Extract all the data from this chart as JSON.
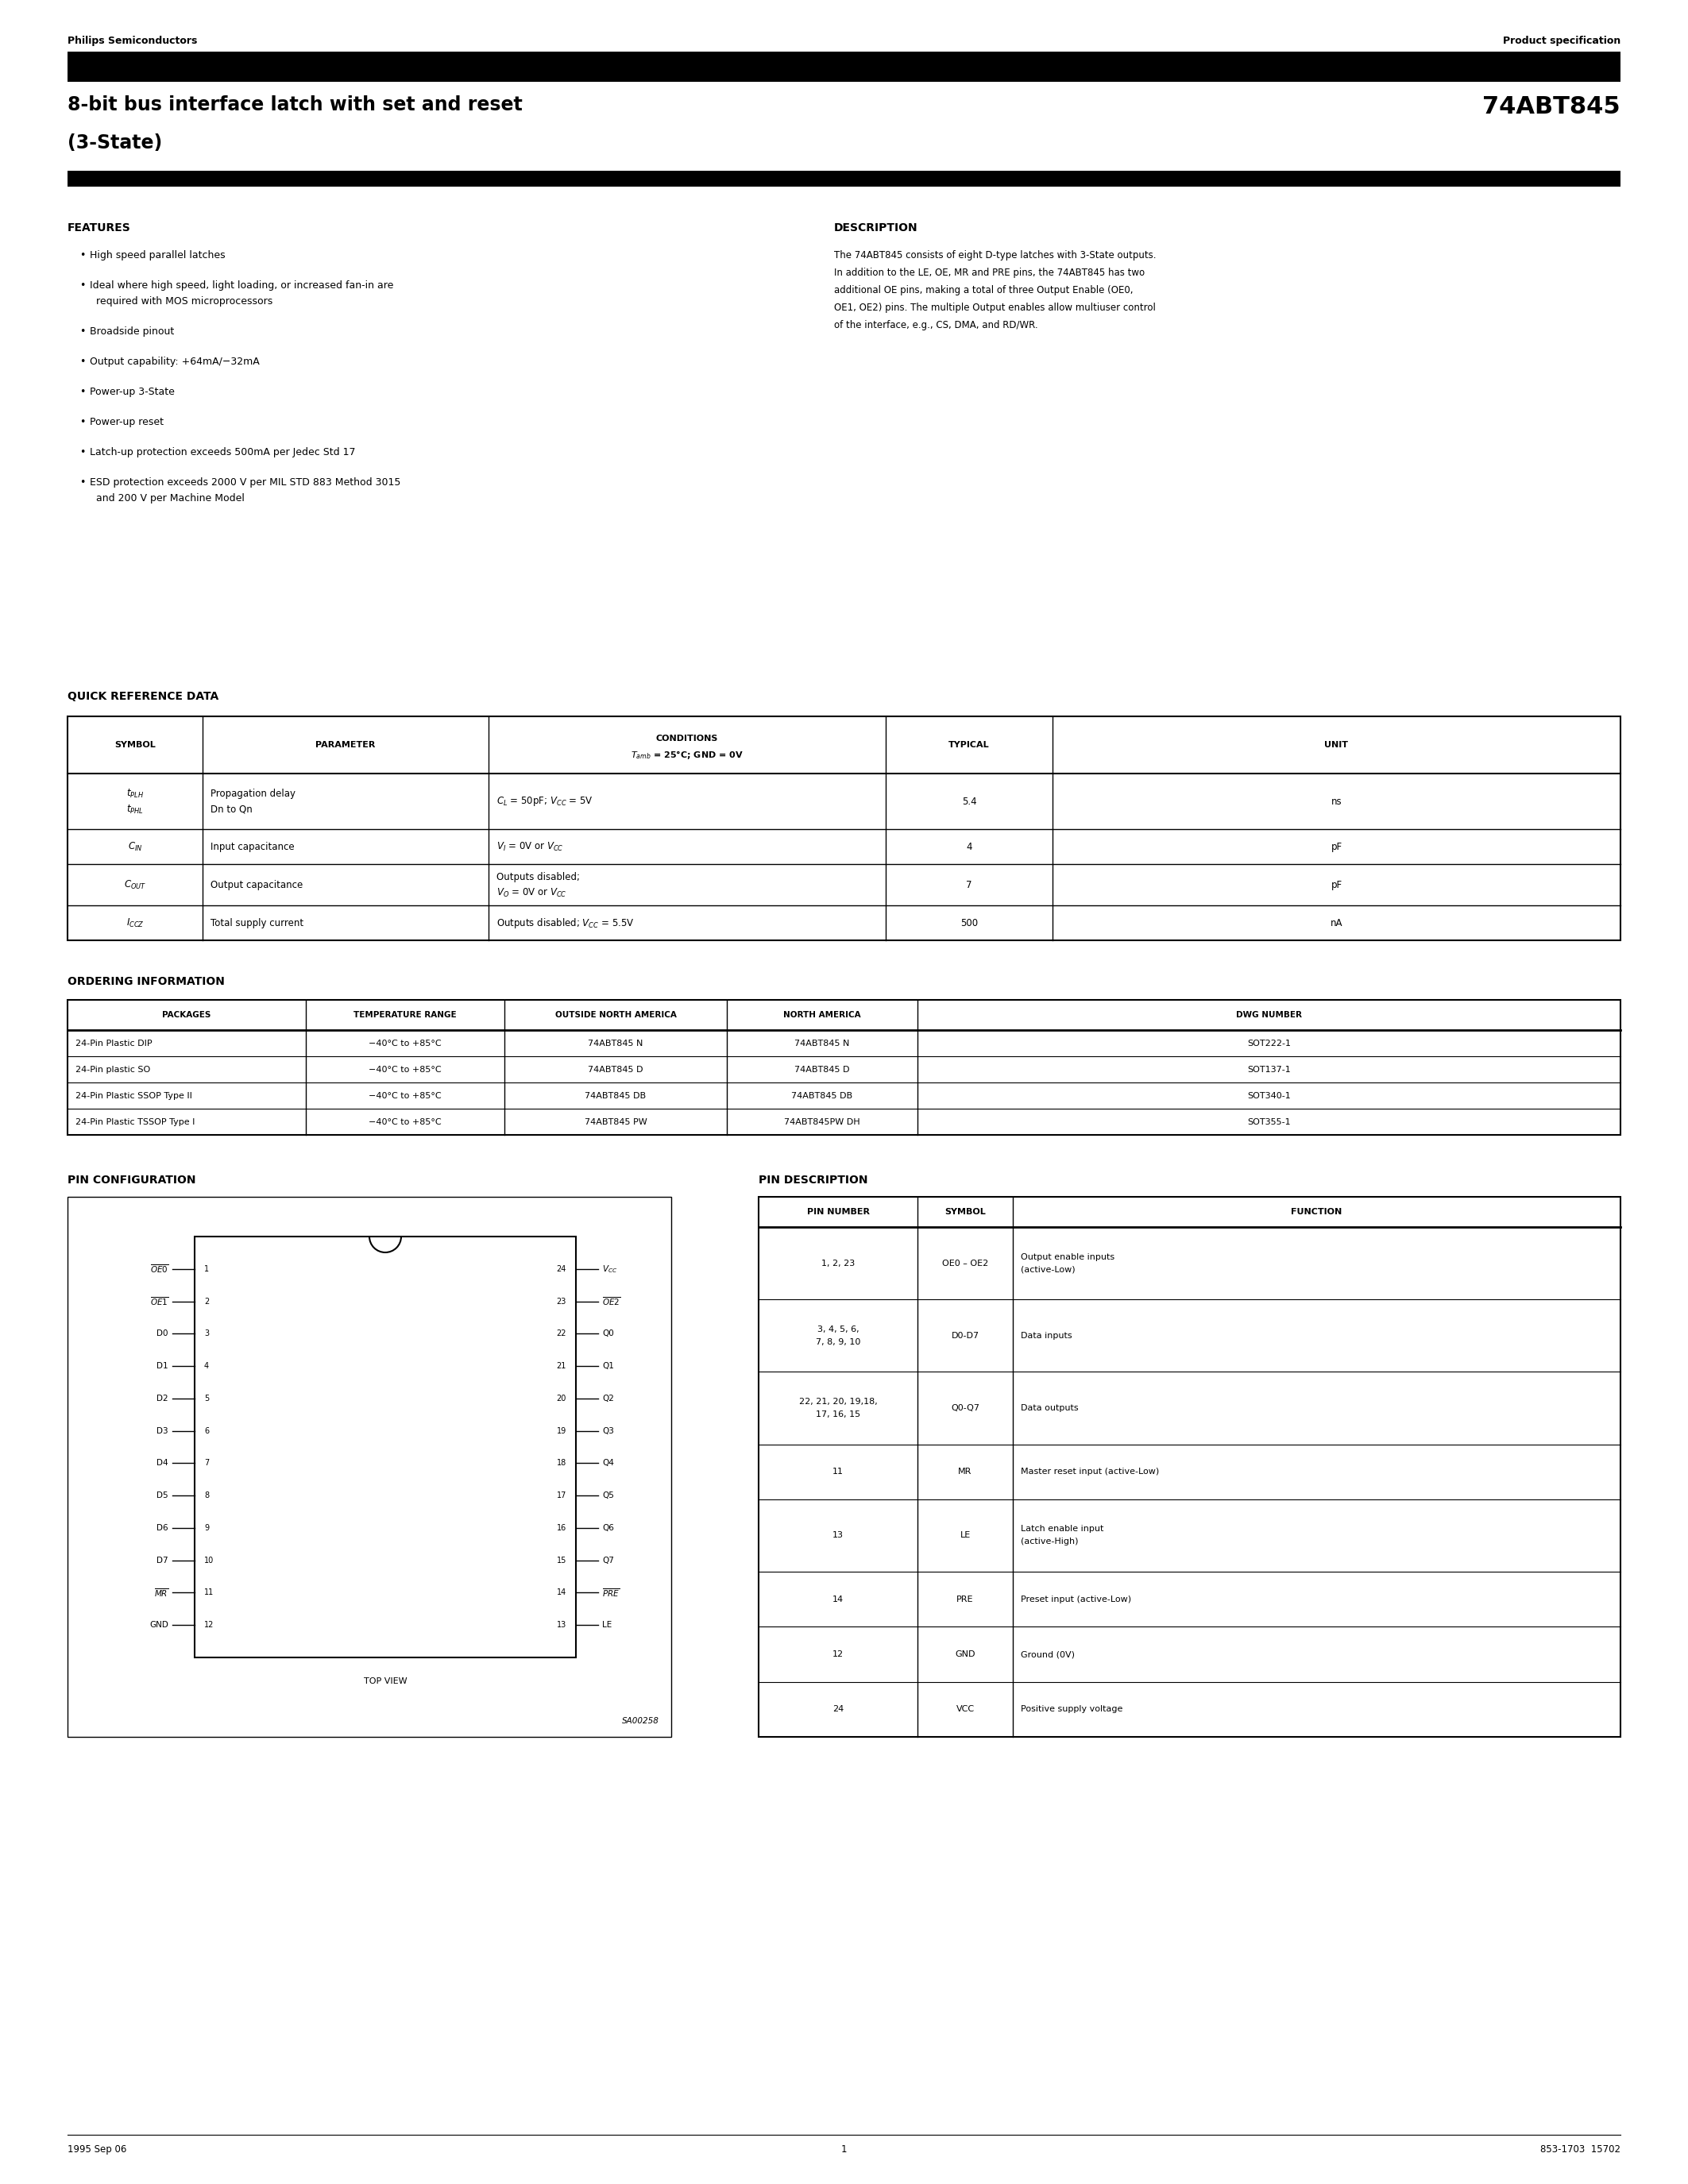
{
  "page_width": 21.25,
  "page_height": 27.5,
  "bg_color": "#ffffff",
  "header_left": "Philips Semiconductors",
  "header_right": "Product specification",
  "title_line1": "8-bit bus interface latch with set and reset",
  "title_line2": "(3-State)",
  "part_number": "74ABT845",
  "features_title": "FEATURES",
  "features": [
    "High speed parallel latches",
    "Ideal where high speed, light loading, or increased fan-in are\n  required with MOS microprocessors",
    "Broadside pinout",
    "Output capability: +64mA/−32mA",
    "Power-up 3-State",
    "Power-up reset",
    "Latch-up protection exceeds 500mA per Jedec Std 17",
    "ESD protection exceeds 2000 V per MIL STD 883 Method 3015\n  and 200 V per Machine Model"
  ],
  "description_title": "DESCRIPTION",
  "description_lines": [
    "The 74ABT845 consists of eight D-type latches with 3-State outputs.",
    "In addition to the LE, OE, MR and PRE pins, the 74ABT845 has two",
    "additional OE pins, making a total of three Output Enable (OE0,",
    "OE1, OE2) pins. The multiple Output enables allow multiuser control",
    "of the interface, e.g., CS, DMA, and RD/WR."
  ],
  "qrd_title": "QUICK REFERENCE DATA",
  "ordering_title": "ORDERING INFORMATION",
  "ordering_headers": [
    "PACKAGES",
    "TEMPERATURE RANGE",
    "OUTSIDE NORTH AMERICA",
    "NORTH AMERICA",
    "DWG NUMBER"
  ],
  "ordering_rows": [
    [
      "24-Pin Plastic DIP",
      "−40°C to +85°C",
      "74ABT845 N",
      "74ABT845 N",
      "SOT222-1"
    ],
    [
      "24-Pin plastic SO",
      "−40°C to +85°C",
      "74ABT845 D",
      "74ABT845 D",
      "SOT137-1"
    ],
    [
      "24-Pin Plastic SSOP Type II",
      "−40°C to +85°C",
      "74ABT845 DB",
      "74ABT845 DB",
      "SOT340-1"
    ],
    [
      "24-Pin Plastic TSSOP Type I",
      "−40°C to +85°C",
      "74ABT845 PW",
      "74ABT845PW DH",
      "SOT355-1"
    ]
  ],
  "pin_config_title": "PIN CONFIGURATION",
  "pin_desc_title": "PIN DESCRIPTION",
  "pin_desc_headers": [
    "PIN NUMBER",
    "SYMBOL",
    "FUNCTION"
  ],
  "pin_desc_rows": [
    [
      "1, 2, 23",
      "OE0 – OE2",
      "Output enable inputs\n(active-Low)"
    ],
    [
      "3, 4, 5, 6,\n7, 8, 9, 10",
      "D0-D7",
      "Data inputs"
    ],
    [
      "22, 21, 20, 19,18,\n17, 16, 15",
      "Q0-Q7",
      "Data outputs"
    ],
    [
      "11",
      "MR",
      "Master reset input (active-Low)"
    ],
    [
      "13",
      "LE",
      "Latch enable input\n(active-High)"
    ],
    [
      "14",
      "PRE",
      "Preset input (active-Low)"
    ],
    [
      "12",
      "GND",
      "Ground (0V)"
    ],
    [
      "24",
      "VCC",
      "Positive supply voltage"
    ]
  ],
  "footer_left": "1995 Sep 06",
  "footer_center": "1",
  "footer_right": "853-1703  15702"
}
